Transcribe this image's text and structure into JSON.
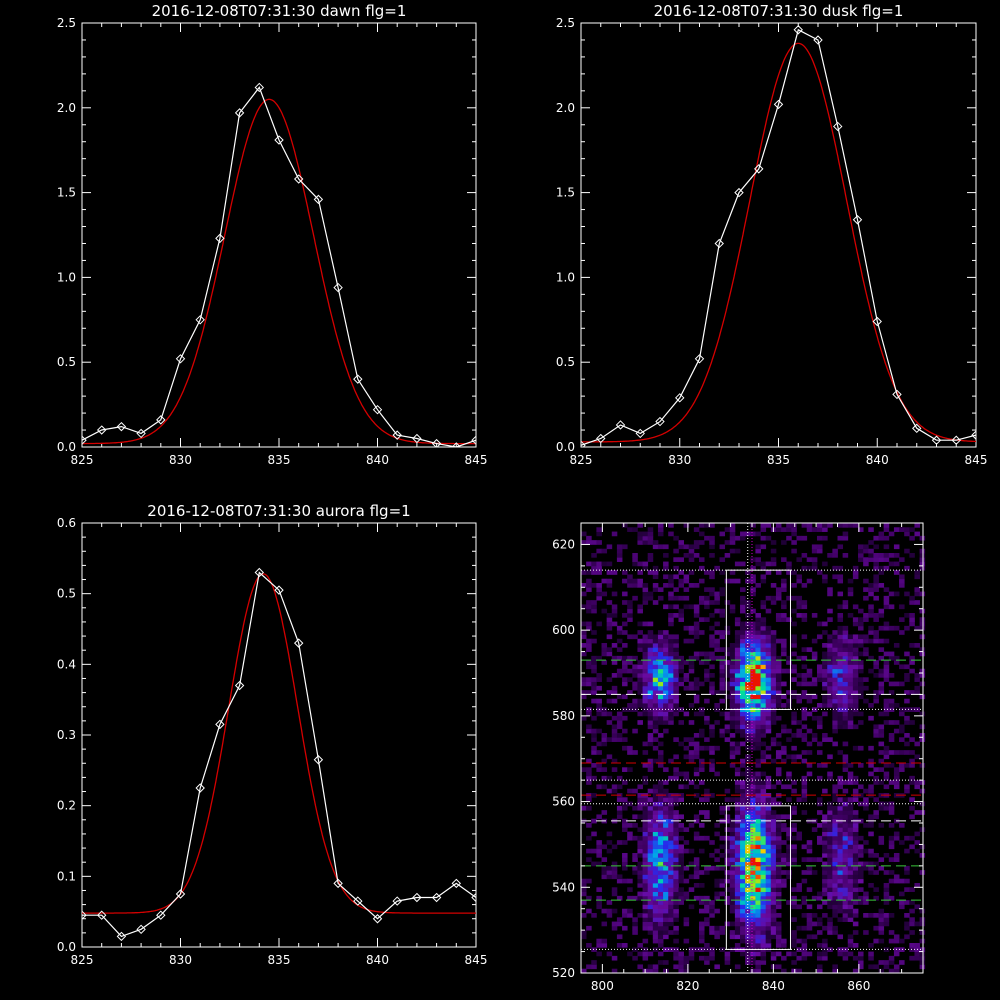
{
  "colors": {
    "background": "#000000",
    "axes": "#ffffff",
    "data": "#ffffff",
    "fit": "#d40000",
    "guide_white": "#ffffff",
    "guide_green": "#39c83a",
    "guide_red": "#d40000"
  },
  "chart_data": [
    {
      "type": "line",
      "title": "2016-12-08T07:31:30 dawn flg=1",
      "xlim": [
        825,
        845
      ],
      "ylim": [
        0,
        2.5
      ],
      "xticks": [
        "825",
        "830",
        "835",
        "840",
        "845"
      ],
      "yticks": [
        "0.0",
        "0.5",
        "1.0",
        "1.5",
        "2.0",
        "2.5"
      ],
      "series": [
        {
          "role": "measured",
          "marker": "diamond",
          "x": [
            825,
            826,
            827,
            828,
            829,
            830,
            831,
            832,
            833,
            834,
            835,
            836,
            837,
            838,
            839,
            840,
            841,
            842,
            843,
            844,
            845
          ],
          "y": [
            0.04,
            0.1,
            0.12,
            0.08,
            0.16,
            0.52,
            0.75,
            1.23,
            1.97,
            2.12,
            1.81,
            1.58,
            1.46,
            0.94,
            0.4,
            0.22,
            0.07,
            0.05,
            0.02,
            0.0,
            0.04
          ]
        },
        {
          "role": "gaussian-fit",
          "amplitude": 2.03,
          "center": 834.5,
          "sigma": 2.25,
          "offset": 0.02
        }
      ]
    },
    {
      "type": "line",
      "title": "2016-12-08T07:31:30 dusk flg=1",
      "xlim": [
        825,
        845
      ],
      "ylim": [
        0,
        2.5
      ],
      "xticks": [
        "825",
        "830",
        "835",
        "840",
        "845"
      ],
      "yticks": [
        "0.0",
        "0.5",
        "1.0",
        "1.5",
        "2.0",
        "2.5"
      ],
      "series": [
        {
          "role": "measured",
          "marker": "diamond",
          "x": [
            825,
            826,
            827,
            828,
            829,
            830,
            831,
            832,
            833,
            834,
            835,
            836,
            837,
            838,
            839,
            840,
            841,
            842,
            843,
            844,
            845
          ],
          "y": [
            0.01,
            0.05,
            0.13,
            0.08,
            0.15,
            0.29,
            0.52,
            1.2,
            1.5,
            1.64,
            2.02,
            2.46,
            2.4,
            1.89,
            1.34,
            0.74,
            0.31,
            0.11,
            0.04,
            0.04,
            0.07
          ]
        },
        {
          "role": "gaussian-fit",
          "amplitude": 2.35,
          "center": 836.0,
          "sigma": 2.45,
          "offset": 0.03
        }
      ]
    },
    {
      "type": "line",
      "title": "2016-12-08T07:31:30 aurora flg=1",
      "xlim": [
        825,
        845
      ],
      "ylim": [
        0,
        0.6
      ],
      "xticks": [
        "825",
        "830",
        "835",
        "840",
        "845"
      ],
      "yticks": [
        "0.0",
        "0.1",
        "0.2",
        "0.3",
        "0.4",
        "0.5",
        "0.6"
      ],
      "series": [
        {
          "role": "measured",
          "marker": "diamond",
          "x": [
            825,
            826,
            827,
            828,
            829,
            830,
            831,
            832,
            833,
            834,
            835,
            836,
            837,
            838,
            839,
            840,
            841,
            842,
            843,
            844,
            845
          ],
          "y": [
            0.045,
            0.045,
            0.015,
            0.025,
            0.045,
            0.075,
            0.225,
            0.315,
            0.37,
            0.53,
            0.505,
            0.43,
            0.265,
            0.09,
            0.065,
            0.04,
            0.065,
            0.07,
            0.07,
            0.09,
            0.07
          ]
        },
        {
          "role": "gaussian-fit",
          "amplitude": 0.48,
          "center": 834.2,
          "sigma": 1.75,
          "offset": 0.048
        }
      ]
    },
    {
      "type": "heatmap",
      "title": "",
      "xlim": [
        795,
        875
      ],
      "ylim": [
        520,
        625
      ],
      "xticks": [
        "800",
        "820",
        "840",
        "860"
      ],
      "yticks": [
        "520",
        "540",
        "560",
        "580",
        "600",
        "620"
      ],
      "intensity_blobs": [
        {
          "x": 835.5,
          "y": 588,
          "sx": 2.6,
          "sy": 6.0,
          "peak": 1.0
        },
        {
          "x": 835.5,
          "y": 545,
          "sx": 2.6,
          "sy": 9.0,
          "peak": 1.0
        },
        {
          "x": 813.5,
          "y": 589,
          "sx": 2.3,
          "sy": 5.0,
          "peak": 0.62
        },
        {
          "x": 813.5,
          "y": 546,
          "sx": 2.3,
          "sy": 8.0,
          "peak": 0.58
        },
        {
          "x": 856.0,
          "y": 589,
          "sx": 2.5,
          "sy": 6.0,
          "peak": 0.3
        },
        {
          "x": 856.0,
          "y": 547,
          "sx": 2.5,
          "sy": 8.0,
          "peak": 0.26
        }
      ],
      "boxes": [
        {
          "x0": 829,
          "x1": 844,
          "y0": 581.5,
          "y1": 614
        },
        {
          "x0": 829,
          "x1": 844,
          "y0": 525.5,
          "y1": 559
        }
      ],
      "hlines": [
        {
          "y": 614,
          "style": "dotted",
          "color": "white"
        },
        {
          "y": 593,
          "style": "dashed",
          "color": "green"
        },
        {
          "y": 585,
          "style": "dashed",
          "color": "white"
        },
        {
          "y": 581.5,
          "style": "dotted",
          "color": "white"
        },
        {
          "y": 569,
          "style": "dashed",
          "color": "red"
        },
        {
          "y": 565,
          "style": "dotted",
          "color": "white"
        },
        {
          "y": 561.5,
          "style": "dashed",
          "color": "red"
        },
        {
          "y": 559.5,
          "style": "dotted",
          "color": "white"
        },
        {
          "y": 555.5,
          "style": "dashed",
          "color": "white"
        },
        {
          "y": 545,
          "style": "dashed",
          "color": "green"
        },
        {
          "y": 537,
          "style": "dashed",
          "color": "green"
        },
        {
          "y": 525.5,
          "style": "dotted",
          "color": "white"
        }
      ],
      "vlines": [
        {
          "x": 834,
          "style": "dotted",
          "color": "white"
        },
        {
          "x": 835,
          "style": "dotted",
          "color": "magenta"
        }
      ]
    }
  ]
}
